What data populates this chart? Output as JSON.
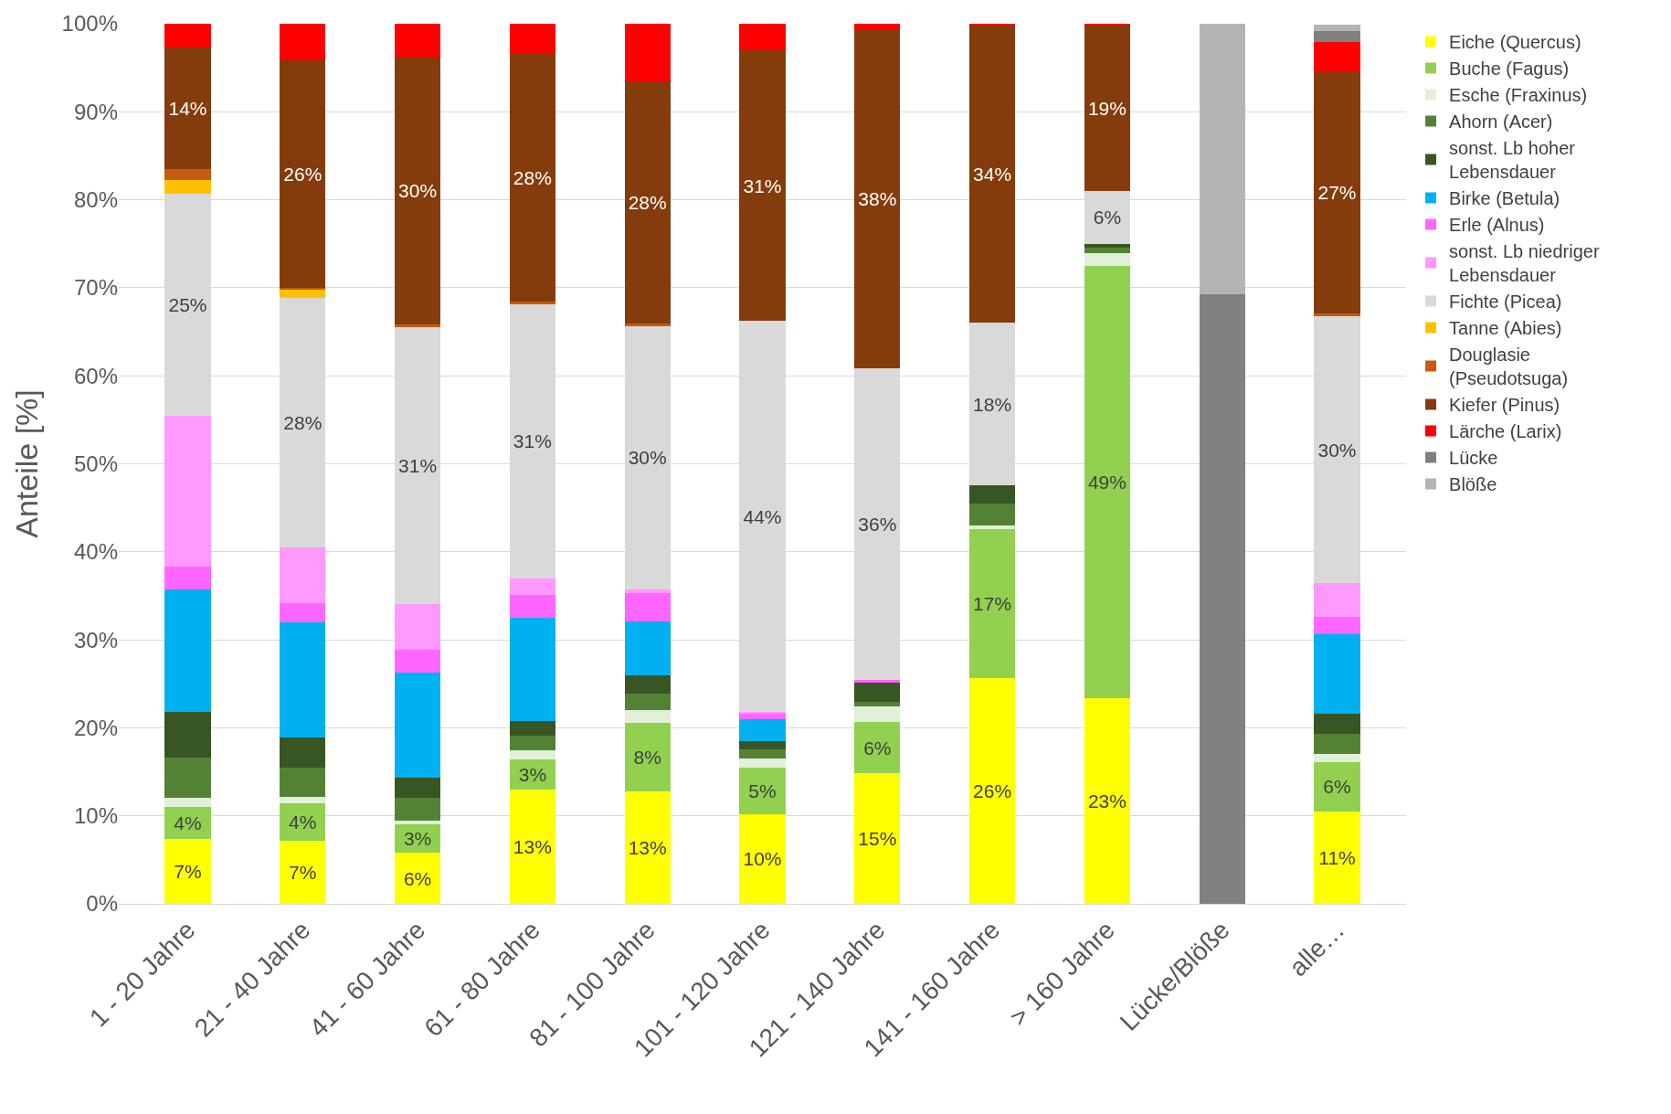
{
  "chart_data": {
    "type": "bar",
    "stacked": true,
    "ylabel": "Anteile [%]",
    "categories": [
      "1 - 20 Jahre",
      "21 - 40 Jahre",
      "41 - 60 Jahre",
      "61 - 80 Jahre",
      "81 - 100 Jahre",
      "101 - 120 Jahre",
      "121 - 140 Jahre",
      "141 - 160 Jahre",
      "> 160 Jahre",
      "Lücke/Blöße",
      "alle…"
    ],
    "ylim": [
      0,
      100
    ],
    "yticks": [
      {
        "value": 0,
        "label": "0%"
      },
      {
        "value": 10,
        "label": "10%"
      },
      {
        "value": 20,
        "label": "20%"
      },
      {
        "value": 30,
        "label": "30%"
      },
      {
        "value": 40,
        "label": "40%"
      },
      {
        "value": 50,
        "label": "50%"
      },
      {
        "value": 60,
        "label": "60%"
      },
      {
        "value": 70,
        "label": "70%"
      },
      {
        "value": 80,
        "label": "80%"
      },
      {
        "value": 90,
        "label": "90%"
      },
      {
        "value": 100,
        "label": "100%"
      }
    ],
    "grid": "y",
    "legend": "right",
    "series": [
      {
        "name": "Eiche (Quercus)",
        "color": "#ffff00",
        "values": [
          7.4,
          7.2,
          5.8,
          13.0,
          12.8,
          10.2,
          14.8,
          25.6,
          23.4,
          0,
          10.5
        ],
        "value_labels": [
          "7%",
          "7%",
          "6%",
          "13%",
          "13%",
          "10%",
          "15%",
          "26%",
          "23%",
          null,
          "11%"
        ]
      },
      {
        "name": "Buche (Fagus)",
        "color": "#92d050",
        "values": [
          3.6,
          4.2,
          3.2,
          3.4,
          7.8,
          5.3,
          5.9,
          17.0,
          49.1,
          0,
          5.6
        ],
        "value_labels": [
          "4%",
          "4%",
          "3%",
          "3%",
          "8%",
          "5%",
          "6%",
          "17%",
          "49%",
          null,
          "6%"
        ]
      },
      {
        "name": "Esche (Fraxinus)",
        "color": "#e2f0d9",
        "values": [
          1.0,
          0.8,
          0.5,
          1.0,
          1.4,
          1.0,
          1.7,
          0.4,
          1.4,
          0,
          0.9
        ]
      },
      {
        "name": "Ahorn (Acer)",
        "color": "#548235",
        "values": [
          4.6,
          3.3,
          2.5,
          1.7,
          1.9,
          1.1,
          0.6,
          2.5,
          0.7,
          0,
          2.3
        ]
      },
      {
        "name": "sonst. Lb hoher Lebensdauer",
        "color": "#375623",
        "values": [
          5.2,
          3.4,
          2.3,
          1.7,
          2.1,
          0.9,
          2.2,
          2.1,
          0.4,
          0,
          2.3
        ]
      },
      {
        "name": "Birke (Betula)",
        "color": "#00b0f0",
        "values": [
          13.9,
          13.1,
          12.0,
          11.7,
          6.1,
          2.5,
          0,
          0,
          0,
          0,
          9.0
        ]
      },
      {
        "name": "Erle (Alnus)",
        "color": "#ff66ff",
        "values": [
          2.6,
          2.2,
          2.6,
          2.6,
          3.2,
          0.6,
          0.2,
          0,
          0,
          0,
          2.0
        ]
      },
      {
        "name": "sonst. Lb niedriger Lebensdauer",
        "color": "#ff99ff",
        "values": [
          17.2,
          6.3,
          5.2,
          1.9,
          0.4,
          0.2,
          0,
          0,
          0,
          0,
          3.8
        ]
      },
      {
        "name": "Fichte (Picea)",
        "color": "#d9d9d9",
        "values": [
          25.2,
          28.3,
          31.4,
          31.1,
          30.0,
          44.4,
          35.5,
          18.4,
          6.0,
          0,
          30.4
        ],
        "value_labels": [
          "25%",
          "28%",
          "31%",
          "31%",
          "30%",
          "44%",
          "36%",
          "18%",
          "6%",
          null,
          "30%"
        ]
      },
      {
        "name": "Tanne (Abies)",
        "color": "#ffc000",
        "values": [
          1.5,
          1.0,
          0,
          0,
          0,
          0,
          0,
          0,
          0,
          0,
          null
        ]
      },
      {
        "name": "Douglasie (Pseudotsuga)",
        "color": "#c55a11",
        "values": [
          1.3,
          0.2,
          0.3,
          0.3,
          0.2,
          0,
          0,
          0,
          0,
          0,
          0.3
        ]
      },
      {
        "name": "Kiefer (Pinus)",
        "color": "#843c0c",
        "values": [
          13.8,
          25.8,
          30.4,
          28.3,
          27.6,
          30.8,
          38.4,
          33.8,
          18.8,
          0,
          27.4
        ],
        "value_labels": [
          "14%",
          "26%",
          "30%",
          "28%",
          "28%",
          "31%",
          "38%",
          "34%",
          "19%",
          null,
          "27%"
        ]
      },
      {
        "name": "Lärche (Larix)",
        "color": "#ff0000",
        "values": [
          2.7,
          4.2,
          3.8,
          3.3,
          6.5,
          3.0,
          0.7,
          0.2,
          0.2,
          0,
          3.4
        ]
      },
      {
        "name": "Lücke",
        "color": "#808080",
        "values": [
          0,
          0,
          0,
          0,
          0,
          0,
          0,
          0,
          0,
          69.3,
          1.3
        ]
      },
      {
        "name": "Blöße",
        "color": "#b4b4b4",
        "values": [
          0,
          0,
          0,
          0,
          0,
          0,
          0,
          0,
          0,
          30.7,
          0.7
        ]
      }
    ]
  }
}
